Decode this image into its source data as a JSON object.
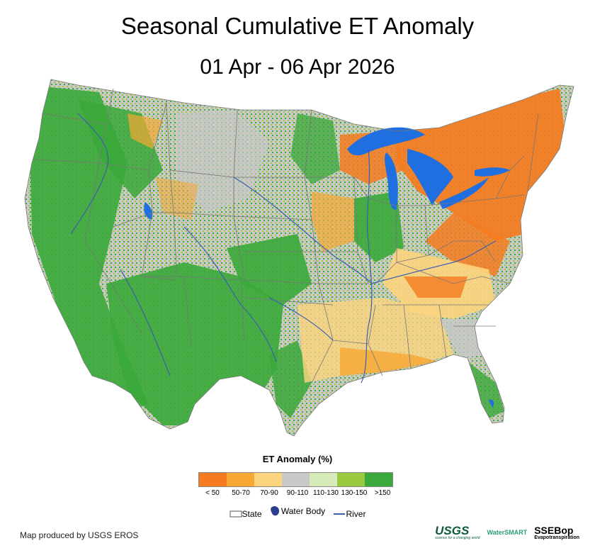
{
  "title": "Seasonal Cumulative ET Anomaly",
  "date_range": "01 Apr - 06 Apr 2026",
  "legend": {
    "title": "ET Anomaly (%)",
    "classes": [
      {
        "label": "< 50",
        "color": "#f47b20"
      },
      {
        "label": "50-70",
        "color": "#f7a833"
      },
      {
        "label": "70-90",
        "color": "#fdd47e"
      },
      {
        "label": "90-110",
        "color": "#c8c8c8"
      },
      {
        "label": "110-130",
        "color": "#d7ebb8"
      },
      {
        "label": "130-150",
        "color": "#99c93f"
      },
      {
        "label": ">150",
        "color": "#3aa83a"
      }
    ]
  },
  "symbols": {
    "state": "State",
    "water_body": "Water Body",
    "river": "River"
  },
  "colors": {
    "water": "#1f6fe0",
    "river": "#3a5fb0",
    "state_line": "#777777"
  },
  "credit": "Map produced by USGS EROS",
  "logos": {
    "usgs": "USGS",
    "usgs_tagline": "science for a changing world",
    "water_smart": "WaterSMART",
    "ssebop": "SSEBop",
    "ssebop_tagline": "Evapotranspiration"
  }
}
